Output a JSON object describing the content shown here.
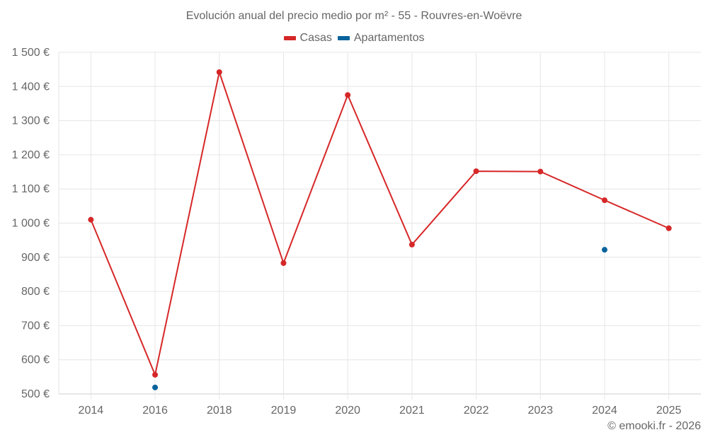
{
  "chart_data": {
    "type": "line",
    "title": "Evolución anual del precio medio por m² - 55 - Rouvres-en-Woëvre",
    "xlabel": "",
    "ylabel": "",
    "categories": [
      "2014",
      "2016",
      "2018",
      "2019",
      "2020",
      "2021",
      "2022",
      "2023",
      "2024",
      "2025"
    ],
    "series": [
      {
        "name": "Casas",
        "color": "#d62728",
        "values": [
          1010,
          556,
          1442,
          883,
          1375,
          937,
          1152,
          1151,
          1067,
          985
        ]
      },
      {
        "name": "Apartamentos",
        "color": "#08639c",
        "values": [
          null,
          519,
          null,
          null,
          null,
          null,
          null,
          null,
          922,
          null
        ]
      }
    ],
    "ylim": [
      500,
      1500
    ],
    "yticks": [
      500,
      600,
      700,
      800,
      900,
      1000,
      1100,
      1200,
      1300,
      1400,
      1500
    ],
    "ytick_labels": [
      "500 €",
      "600 €",
      "700 €",
      "800 €",
      "900 €",
      "1 000 €",
      "1 100 €",
      "1 200 €",
      "1 300 €",
      "1 400 €",
      "1 500 €"
    ],
    "grid": true,
    "legend_position": "top"
  },
  "legend": {
    "items": [
      {
        "label": "Casas",
        "color": "#d62728"
      },
      {
        "label": "Apartamentos",
        "color": "#08639c"
      }
    ]
  },
  "credit": "© emooki.fr - 2026"
}
